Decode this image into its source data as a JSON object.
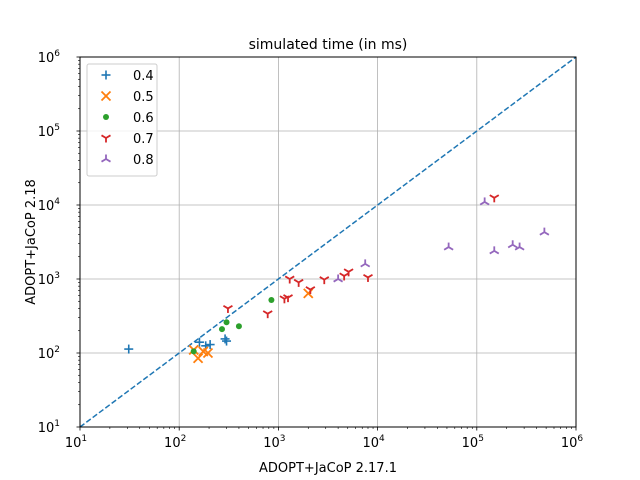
{
  "chart_data": {
    "type": "scatter",
    "title": "simulated time (in ms)",
    "xlabel": "ADOPT+JaCoP 2.17.1",
    "ylabel": "ADOPT+JaCoP 2.18",
    "xscale": "log",
    "yscale": "log",
    "xlim": [
      10,
      1000000
    ],
    "ylim": [
      10,
      1000000
    ],
    "grid": true,
    "legend_position": "top-left",
    "x_ticks": [
      {
        "base": "10",
        "exp": "1"
      },
      {
        "base": "10",
        "exp": "2"
      },
      {
        "base": "10",
        "exp": "3"
      },
      {
        "base": "10",
        "exp": "4"
      },
      {
        "base": "10",
        "exp": "5"
      },
      {
        "base": "10",
        "exp": "6"
      }
    ],
    "y_ticks": [
      {
        "base": "10",
        "exp": "1"
      },
      {
        "base": "10",
        "exp": "2"
      },
      {
        "base": "10",
        "exp": "3"
      },
      {
        "base": "10",
        "exp": "4"
      },
      {
        "base": "10",
        "exp": "5"
      },
      {
        "base": "10",
        "exp": "6"
      }
    ],
    "diagonal": {
      "style": "dashed",
      "color": "#1f77b4"
    },
    "series": [
      {
        "name": "0.4",
        "marker": "plus",
        "color": "#1f77b4",
        "points": [
          [
            31,
            113
          ],
          [
            160,
            140
          ],
          [
            185,
            125
          ],
          [
            205,
            130
          ],
          [
            290,
            155
          ],
          [
            300,
            145
          ]
        ]
      },
      {
        "name": "0.5",
        "marker": "x",
        "color": "#ff7f0e",
        "points": [
          [
            140,
            110
          ],
          [
            155,
            85
          ],
          [
            175,
            105
          ],
          [
            195,
            100
          ],
          [
            2000,
            640
          ]
        ]
      },
      {
        "name": "0.6",
        "marker": "dot",
        "color": "#2ca02c",
        "points": [
          [
            140,
            105
          ],
          [
            270,
            210
          ],
          [
            300,
            260
          ],
          [
            400,
            230
          ],
          [
            850,
            520
          ]
        ]
      },
      {
        "name": "0.7",
        "marker": "tri_down",
        "color": "#d62728",
        "points": [
          [
            310,
            400
          ],
          [
            780,
            340
          ],
          [
            1150,
            540
          ],
          [
            1250,
            560
          ],
          [
            1300,
            1000
          ],
          [
            1600,
            900
          ],
          [
            2100,
            720
          ],
          [
            2900,
            980
          ],
          [
            4600,
            1100
          ],
          [
            5100,
            1250
          ],
          [
            8000,
            1050
          ],
          [
            150000,
            12500
          ]
        ]
      },
      {
        "name": "0.8",
        "marker": "tri_up",
        "color": "#9467bd",
        "points": [
          [
            4000,
            1000
          ],
          [
            7500,
            1600
          ],
          [
            52000,
            2700
          ],
          [
            120000,
            11000
          ],
          [
            150000,
            2400
          ],
          [
            230000,
            2900
          ],
          [
            270000,
            2700
          ],
          [
            480000,
            4300
          ]
        ]
      }
    ]
  }
}
